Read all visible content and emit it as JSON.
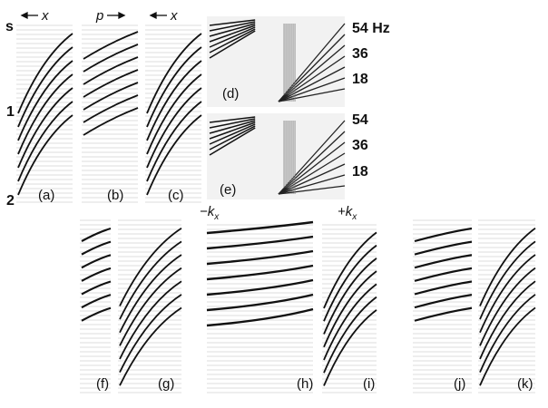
{
  "header": {
    "time_unit": "s",
    "time_ticks": [
      "1",
      "2"
    ],
    "direction_labels": [
      "x",
      "p",
      "x"
    ]
  },
  "frequency_axes": [
    {
      "ticks": [
        "54 Hz",
        "36",
        "18"
      ]
    },
    {
      "ticks": [
        "54",
        "36",
        "18"
      ]
    }
  ],
  "wavenumber_labels": [
    {
      "text": "−k",
      "subscript": "x"
    },
    {
      "text": "+k",
      "subscript": "x"
    }
  ],
  "panels": [
    "(a)",
    "(b)",
    "(c)",
    "(d)",
    "(e)",
    "(f)",
    "(g)",
    "(h)",
    "(i)",
    "(j)",
    "(k)"
  ]
}
